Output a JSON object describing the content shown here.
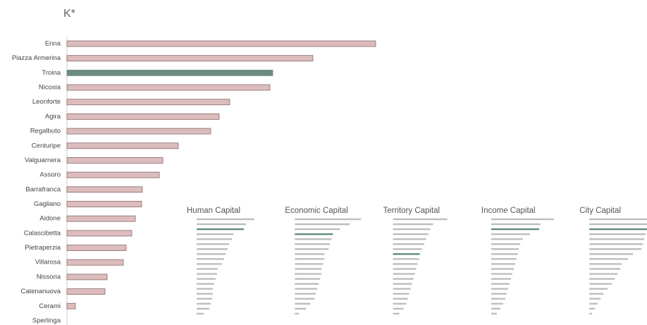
{
  "chart_data": [
    {
      "type": "bar",
      "title": "K*",
      "orientation": "horizontal",
      "categories": [
        "Enna",
        "Piazza Armerina",
        "Troina",
        "Nicosia",
        "Leonforte",
        "Agira",
        "Regalbuto",
        "Centuripe",
        "Valguarnera",
        "Assoro",
        "Barrafranca",
        "Gagliano",
        "Aidone",
        "Calascibetta",
        "Pietraperzia",
        "Villarosa",
        "Nissoria",
        "Catenanuova",
        "Cerami",
        "Sperlinga"
      ],
      "values": [
        438,
        349,
        292,
        288,
        231,
        216,
        204,
        158,
        136,
        131,
        107,
        106,
        97,
        92,
        84,
        80,
        57,
        54,
        12,
        0
      ],
      "color": "#dcbcbc",
      "highlight": 2,
      "highlight_color": "#6b8c7d",
      "xlim": [
        0,
        450
      ]
    },
    {
      "type": "bar",
      "title": "Human Capital",
      "orientation": "horizontal",
      "values": [
        82,
        70,
        67,
        52,
        50,
        46,
        44,
        41,
        39,
        36,
        30,
        29,
        27,
        25,
        23,
        23,
        22,
        20,
        18,
        10
      ],
      "color": "#bdbdbd",
      "highlight": 2,
      "highlight_color": "#5e8c78",
      "xlim": [
        0,
        450
      ]
    },
    {
      "type": "bar",
      "title": "Economic Capital",
      "orientation": "horizontal",
      "values": [
        94,
        78,
        64,
        54,
        52,
        50,
        48,
        42,
        42,
        40,
        38,
        38,
        36,
        34,
        32,
        30,
        28,
        22,
        16,
        6
      ],
      "color": "#bdbdbd",
      "highlight": 3,
      "highlight_color": "#5e8c78",
      "xlim": [
        0,
        450
      ]
    },
    {
      "type": "bar",
      "title": "Territory Capital",
      "orientation": "horizontal",
      "values": [
        77,
        57,
        53,
        50,
        47,
        44,
        41,
        38,
        37,
        35,
        33,
        31,
        29,
        27,
        25,
        23,
        21,
        19,
        15,
        9
      ],
      "color": "#bdbdbd",
      "highlight": 7,
      "highlight_color": "#5e8c78",
      "xlim": [
        0,
        450
      ]
    },
    {
      "type": "bar",
      "title": "Income Capital",
      "orientation": "horizontal",
      "values": [
        89,
        70,
        68,
        55,
        45,
        41,
        39,
        38,
        36,
        34,
        32,
        30,
        28,
        26,
        24,
        22,
        20,
        17,
        13,
        8
      ],
      "color": "#bdbdbd",
      "highlight": 2,
      "highlight_color": "#5e8c78",
      "xlim": [
        0,
        450
      ]
    },
    {
      "type": "bar",
      "title": "City Capital",
      "orientation": "horizontal",
      "values": [
        85,
        84,
        82,
        80,
        78,
        76,
        74,
        62,
        55,
        46,
        44,
        40,
        36,
        32,
        26,
        20,
        16,
        12,
        8,
        4
      ],
      "color": "#bdbdbd",
      "highlight": 2,
      "highlight_color": "#5e8c78",
      "xlim": [
        0,
        450
      ]
    }
  ]
}
